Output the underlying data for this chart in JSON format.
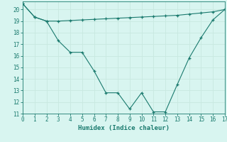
{
  "line1_x": [
    0,
    1,
    2,
    3,
    4,
    5,
    6,
    7,
    8,
    9,
    10,
    11,
    12,
    13,
    14,
    15,
    16,
    17
  ],
  "line1_y": [
    20.5,
    19.35,
    19.0,
    17.3,
    16.3,
    16.3,
    14.7,
    12.8,
    12.8,
    11.4,
    12.8,
    11.15,
    11.15,
    13.5,
    15.8,
    17.55,
    19.1,
    20.0
  ],
  "line2_x": [
    0,
    1,
    2,
    3,
    4,
    5,
    6,
    7,
    8,
    9,
    10,
    11,
    12,
    13,
    14,
    15,
    16,
    17
  ],
  "line2_y": [
    20.5,
    19.35,
    19.0,
    19.0,
    19.05,
    19.1,
    19.15,
    19.2,
    19.25,
    19.3,
    19.35,
    19.4,
    19.45,
    19.5,
    19.6,
    19.7,
    19.8,
    20.0
  ],
  "line_color": "#1a7a6e",
  "bg_color": "#d8f5f0",
  "grid_major_color": "#c8e8e0",
  "grid_minor_color": "#e0f5f0",
  "xlabel": "Humidex (Indice chaleur)",
  "xlim": [
    0,
    17
  ],
  "ylim": [
    11,
    20.7
  ],
  "xticks": [
    0,
    1,
    2,
    3,
    4,
    5,
    6,
    7,
    8,
    9,
    10,
    11,
    12,
    13,
    14,
    15,
    16,
    17
  ],
  "yticks": [
    11,
    12,
    13,
    14,
    15,
    16,
    17,
    18,
    19,
    20
  ],
  "tick_fontsize": 5.5,
  "label_fontsize": 6.5,
  "marker": "+",
  "markersize": 3.5,
  "linewidth": 0.8
}
